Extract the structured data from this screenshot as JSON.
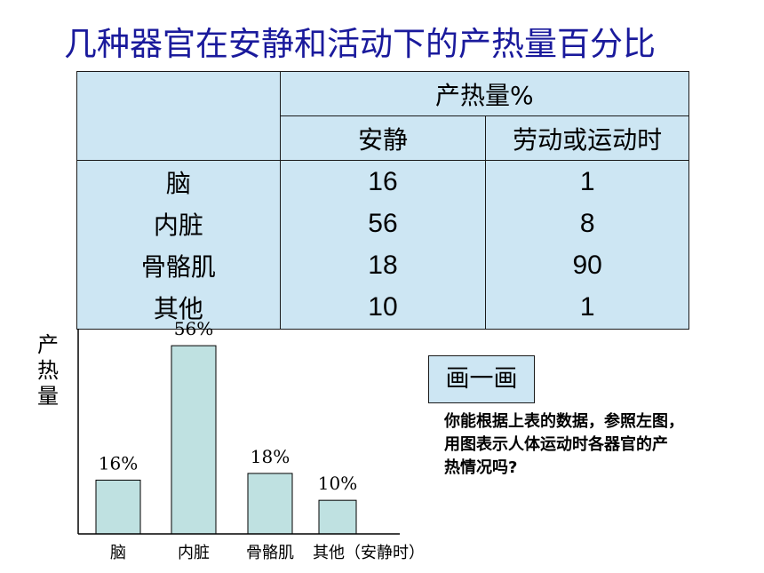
{
  "title": "几种器官在安静和活动下的产热量百分比",
  "table": {
    "group_header": "产热量%",
    "col_rest": "安静",
    "col_exercise": "劳动或运动时",
    "rows": [
      {
        "organ": "脑",
        "rest": "16",
        "exercise": "1"
      },
      {
        "organ": "内脏",
        "rest": "56",
        "exercise": "8"
      },
      {
        "organ": "骨骼肌",
        "rest": "18",
        "exercise": "90"
      },
      {
        "organ": "其他",
        "rest": "10",
        "exercise": "1"
      }
    ]
  },
  "chart_data": {
    "type": "bar",
    "categories": [
      "脑",
      "内脏",
      "骨骼肌",
      "其他（安静时）"
    ],
    "values": [
      16,
      56,
      18,
      10
    ],
    "data_labels": [
      "16%",
      "56%",
      "18%",
      "10%"
    ],
    "ylabel_chars": [
      "产",
      "热",
      "量"
    ],
    "ylim": [
      0,
      60
    ],
    "grid": false,
    "bar_color": "#bfe1e1"
  },
  "draw_box_label": "画一画",
  "instruction_lines": [
    "你能根据上表的数据，参照左图，",
    "用图表示人体运动时各器官的产",
    "热情况吗?"
  ],
  "colors": {
    "title": "#1a1a9c",
    "table_bg": "#cde6f3"
  }
}
